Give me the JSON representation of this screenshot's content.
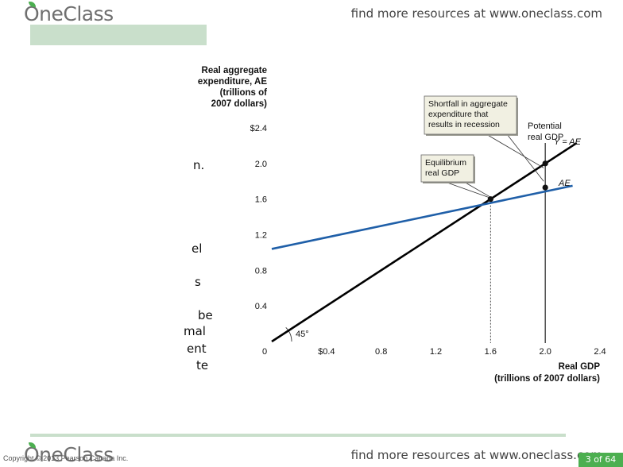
{
  "header": {
    "logo_text": "OneClass",
    "find_more": "find more resources at www.oneclass.com"
  },
  "footer": {
    "logo_text": "OneClass",
    "find_more": "find more resources at www.oneclass.com",
    "copyright": "Copyright © 2013 Pearson Canada Inc.",
    "page_indicator": "3 of 64"
  },
  "side_text_fragments": [
    "n.",
    "el",
    "s",
    "be",
    "mal",
    "ent",
    "te"
  ],
  "colors": {
    "ae_line": "#1f5fa8",
    "y_ae_line": "#000000",
    "accent_green": "#4caf50",
    "callout_fill": "#f1f0e2"
  },
  "chart_data": {
    "type": "line",
    "ylabel": [
      "Real aggregate",
      "expenditure, AE",
      "(trillions of",
      "2007 dollars)"
    ],
    "xlabel": [
      "Real GDP",
      "(trillions of 2007 dollars)"
    ],
    "xlim": [
      0,
      2.4
    ],
    "ylim": [
      0,
      2.4
    ],
    "x_ticks": [
      {
        "value": 0,
        "label": "0"
      },
      {
        "value": 0.4,
        "label": "$0.4"
      },
      {
        "value": 0.8,
        "label": "0.8"
      },
      {
        "value": 1.2,
        "label": "1.2"
      },
      {
        "value": 1.6,
        "label": "1.6"
      },
      {
        "value": 2.0,
        "label": "2.0"
      },
      {
        "value": 2.4,
        "label": "2.4"
      }
    ],
    "y_ticks": [
      {
        "value": 0.4,
        "label": "0.4"
      },
      {
        "value": 0.8,
        "label": "0.8"
      },
      {
        "value": 1.2,
        "label": "1.2"
      },
      {
        "value": 1.6,
        "label": "1.6"
      },
      {
        "value": 2.0,
        "label": "2.0"
      },
      {
        "value": 2.4,
        "label": "$2.4"
      }
    ],
    "series": [
      {
        "name": "Y = AE",
        "x": [
          0,
          2.23
        ],
        "y": [
          0,
          2.23
        ]
      },
      {
        "name": "AE",
        "x": [
          0,
          2.2
        ],
        "y": [
          1.04,
          1.75
        ]
      }
    ],
    "angle_label": "45°",
    "points": [
      {
        "x": 1.6,
        "y": 1.6
      },
      {
        "x": 2.0,
        "y": 2.0
      },
      {
        "x": 2.0,
        "y": 1.73
      }
    ],
    "potential_gdp": {
      "x": 2.0,
      "label": [
        "Potential",
        "real GDP"
      ]
    },
    "equilibrium_x": 1.6,
    "annotations": [
      {
        "id": "equilibrium",
        "text": [
          "Equilibrium",
          "real GDP"
        ],
        "target": {
          "x": 1.6,
          "y": 1.6
        }
      },
      {
        "id": "shortfall",
        "text": [
          "Shortfall in aggregate",
          "expenditure that",
          "results in recession"
        ],
        "target": {
          "x": 2.0,
          "y": 1.87
        }
      }
    ],
    "grid": false
  }
}
